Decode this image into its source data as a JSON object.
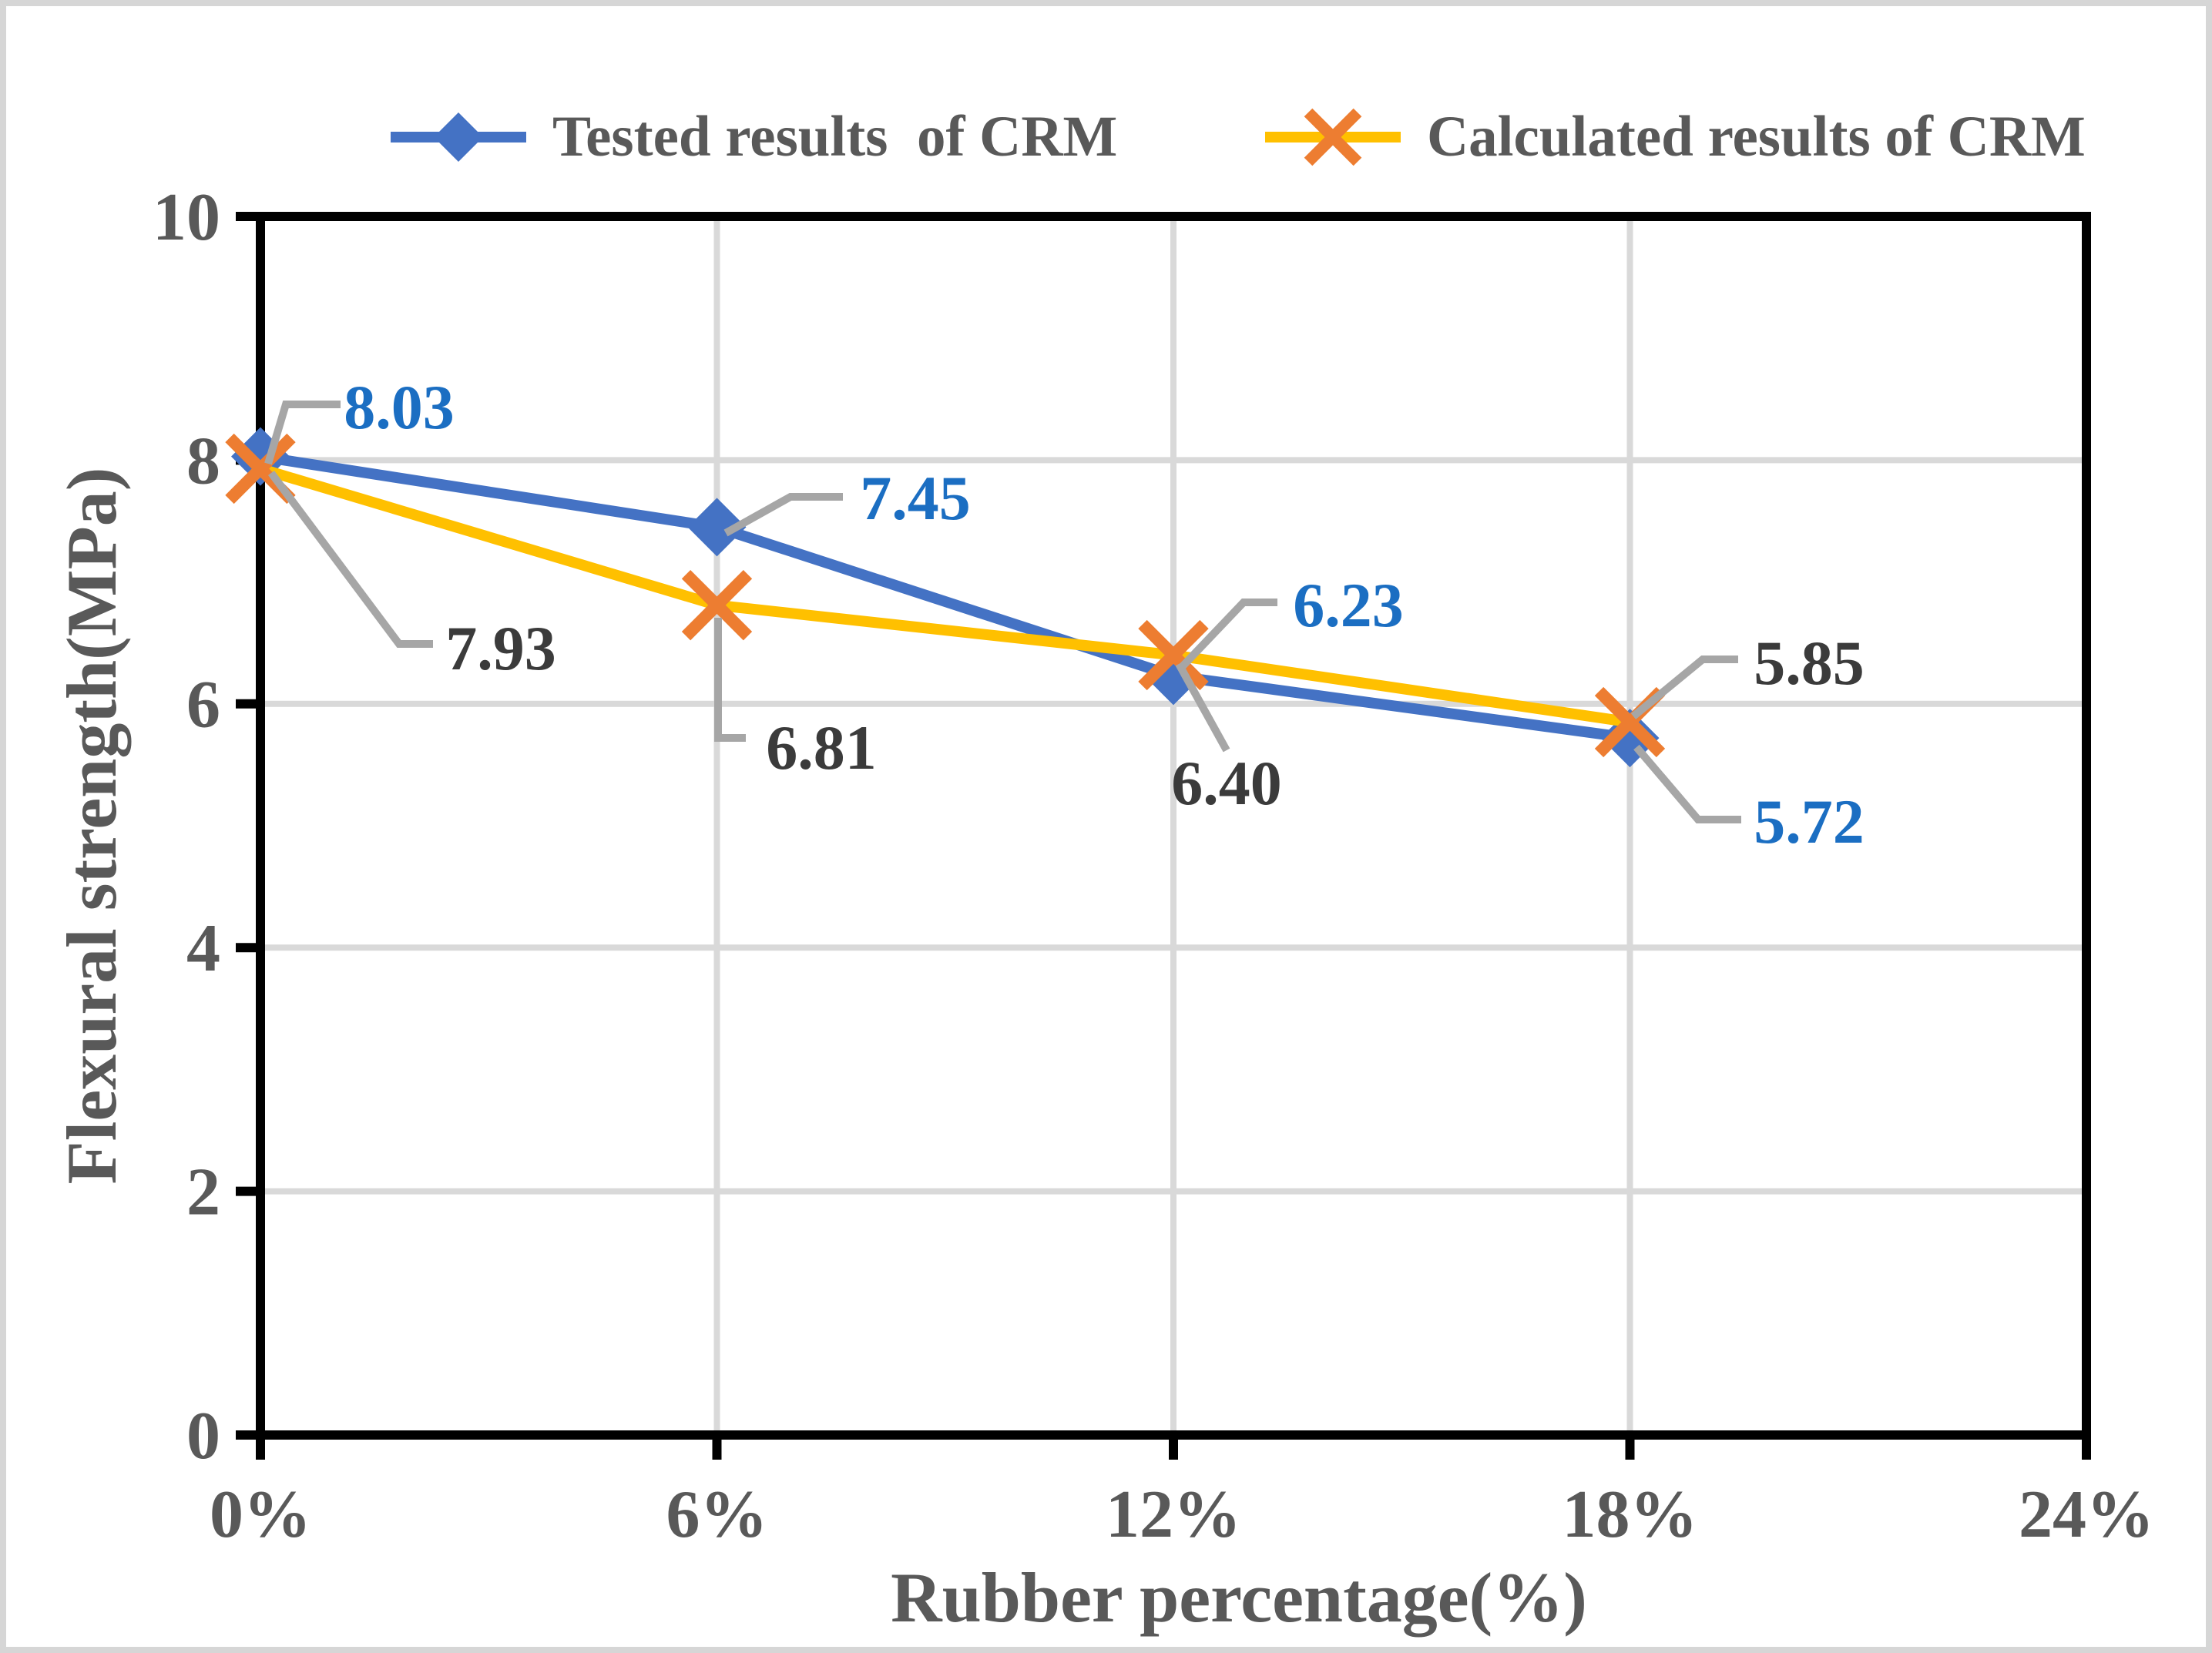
{
  "figure": {
    "background": "#ffffff",
    "outer_border_color": "#d6d6d6"
  },
  "legend": {
    "position": "top",
    "items": [
      {
        "label": "Tested results  of CRM",
        "marker": "diamond-marker",
        "line_color": "#4472C4",
        "marker_color": "#4472C4"
      },
      {
        "label": "Calculated results of CRM",
        "marker": "x-marker",
        "line_color": "#FFC000",
        "marker_color": "#ED7D31"
      }
    ]
  },
  "chart_data": {
    "type": "line",
    "title": "",
    "xlabel": "Rubber percentage(%)",
    "ylabel": "Flexural strength(MPa)",
    "x_ticklabels": [
      "0%",
      "6%",
      "12%",
      "18%",
      "24%"
    ],
    "xlim": [
      0,
      24
    ],
    "ylim": [
      0,
      10
    ],
    "y_ticks": [
      0,
      2,
      4,
      6,
      8,
      10
    ],
    "grid": true,
    "gridline_color": "#D9D9D9",
    "plot_border_color": "#000000",
    "axis_text_color": "#595959",
    "leader_line_color": "#A6A6A6",
    "data_labels_shown": true,
    "legend_position": "top",
    "series": [
      {
        "name": "Tested results  of CRM",
        "x": [
          0,
          6,
          12,
          18
        ],
        "values": [
          8.03,
          7.45,
          6.23,
          5.72
        ],
        "labels": [
          "8.03",
          "7.45",
          "6.23",
          "5.72"
        ],
        "color": "#4472C4",
        "marker": "diamond",
        "marker_color": "#4472C4",
        "label_color": "#1B6EC2"
      },
      {
        "name": "Calculated results of CRM",
        "x": [
          0,
          6,
          12,
          18
        ],
        "values": [
          7.93,
          6.81,
          6.4,
          5.85
        ],
        "labels": [
          "7.93",
          "6.81",
          "6.40",
          "5.85"
        ],
        "color": "#FFC000",
        "marker": "x",
        "marker_color": "#ED7D31",
        "label_color": "#3B3B3B"
      }
    ]
  }
}
